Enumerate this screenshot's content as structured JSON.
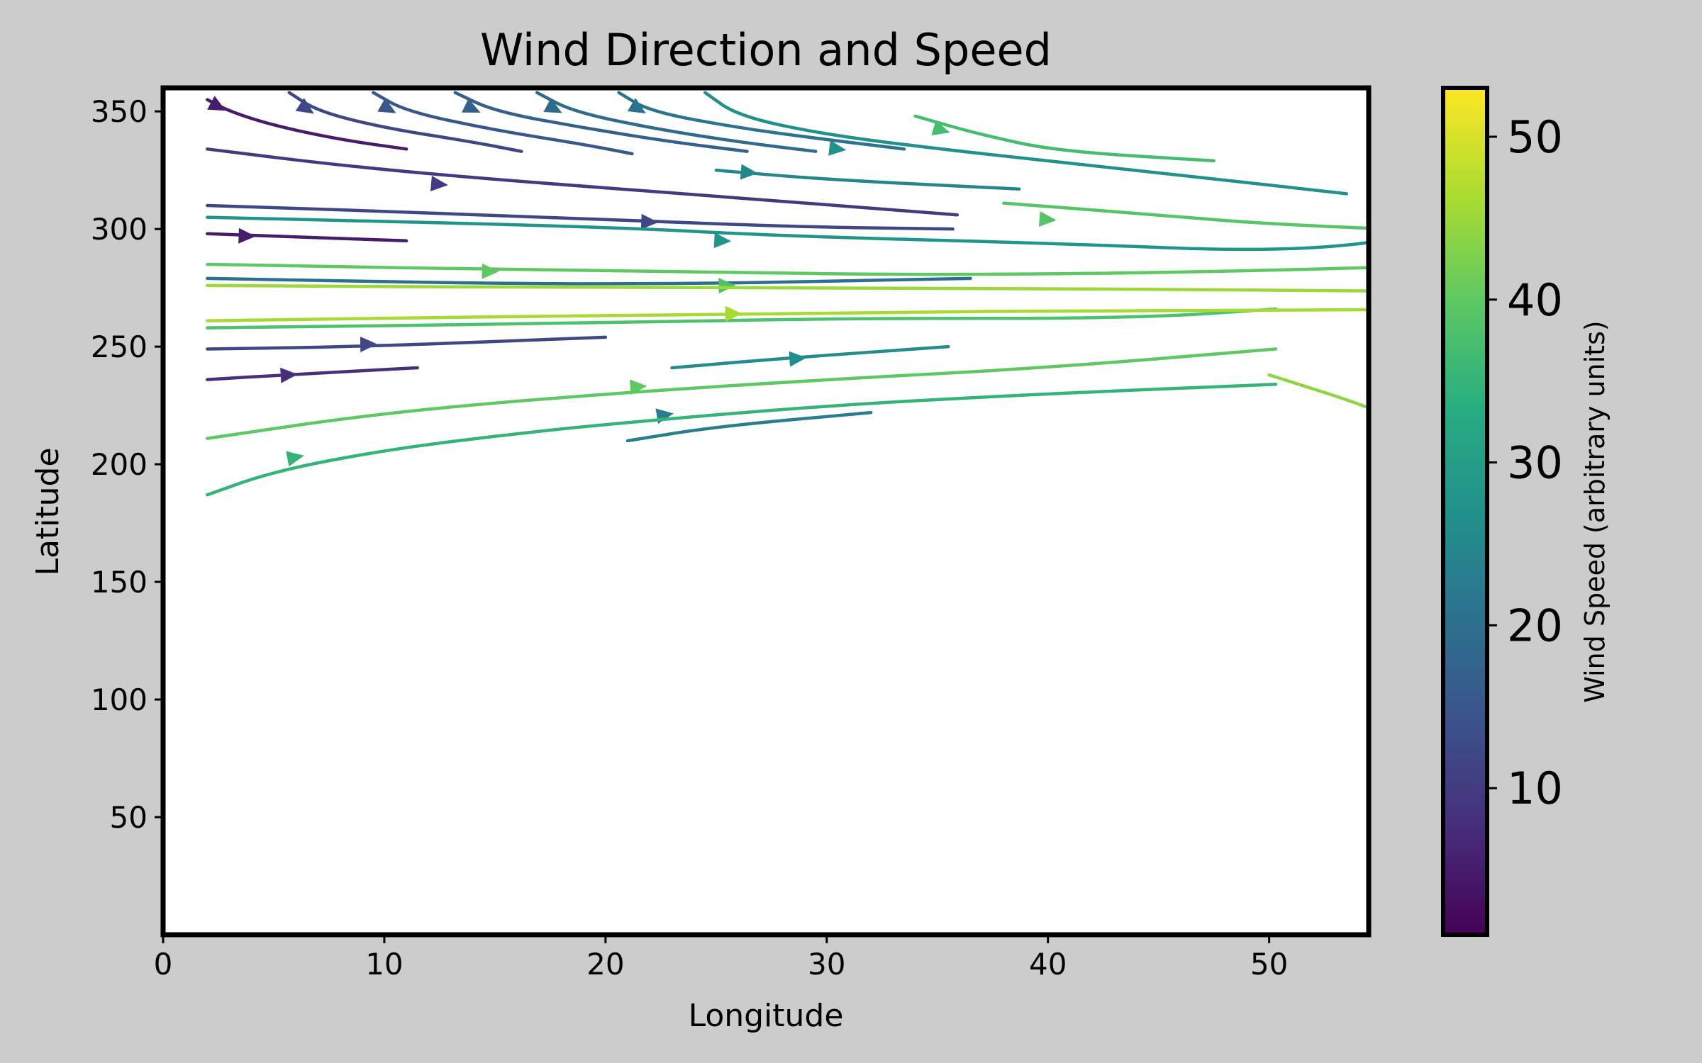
{
  "chart_data": {
    "type": "streamplot",
    "title": "Wind Direction and Speed",
    "xlabel": "Longitude",
    "ylabel": "Latitude",
    "xlim": [
      0,
      54.5
    ],
    "ylim": [
      0,
      360
    ],
    "xticks": [
      0,
      10,
      20,
      30,
      40,
      50
    ],
    "yticks": [
      50,
      100,
      150,
      200,
      250,
      300,
      350
    ],
    "grid": false,
    "colorbar": {
      "label": "Wind Speed (arbitrary units)",
      "range": [
        1,
        53
      ],
      "ticks": [
        10,
        20,
        30,
        40,
        50
      ],
      "colormap": "viridis"
    },
    "streamlines": [
      {
        "pts": [
          [
            2,
            355
          ],
          [
            3,
            350
          ],
          [
            5,
            344
          ],
          [
            8,
            338
          ],
          [
            11,
            334
          ]
        ],
        "speed": 5,
        "arrow": [
          2.5,
          352
        ],
        "dir": 1
      },
      {
        "pts": [
          [
            5.7,
            358
          ],
          [
            7,
            350
          ],
          [
            10,
            343
          ],
          [
            14,
            337
          ],
          [
            16.2,
            333
          ]
        ],
        "speed": 12,
        "arrow": [
          6.5,
          351
        ],
        "dir": 1
      },
      {
        "pts": [
          [
            9.5,
            358
          ],
          [
            11,
            350
          ],
          [
            15,
            342
          ],
          [
            19,
            336
          ],
          [
            21.2,
            332
          ]
        ],
        "speed": 15,
        "arrow": [
          10.2,
          351
        ],
        "dir": 1
      },
      {
        "pts": [
          [
            13.2,
            358
          ],
          [
            15,
            350
          ],
          [
            19,
            343
          ],
          [
            23,
            337
          ],
          [
            26.4,
            333
          ]
        ],
        "speed": 17,
        "arrow": [
          14,
          351
        ],
        "dir": 1
      },
      {
        "pts": [
          [
            16.9,
            358
          ],
          [
            18.5,
            350
          ],
          [
            22,
            343
          ],
          [
            26,
            337
          ],
          [
            29.5,
            333
          ]
        ],
        "speed": 19,
        "arrow": [
          17.7,
          351
        ],
        "dir": 1
      },
      {
        "pts": [
          [
            20.6,
            358
          ],
          [
            22,
            350
          ],
          [
            26,
            343
          ],
          [
            30,
            338
          ],
          [
            33.5,
            334
          ]
        ],
        "speed": 21,
        "arrow": [
          21.5,
          351
        ],
        "dir": 1
      },
      {
        "pts": [
          [
            24.5,
            358
          ],
          [
            26,
            348
          ],
          [
            30,
            340
          ],
          [
            36,
            333
          ],
          [
            43,
            326
          ],
          [
            53.5,
            315
          ]
        ],
        "speed": 27,
        "arrow": [
          30.5,
          334
        ],
        "dir": 1
      },
      {
        "pts": [
          [
            34,
            348
          ],
          [
            37,
            340
          ],
          [
            40.5,
            333
          ],
          [
            47.5,
            329
          ]
        ],
        "speed": 37,
        "arrow": [
          35.2,
          342
        ],
        "dir": 1
      },
      {
        "pts": [
          [
            25,
            325
          ],
          [
            30,
            321
          ],
          [
            38.7,
            317
          ]
        ],
        "speed": 25,
        "arrow": [
          26.5,
          324
        ],
        "dir": 1
      },
      {
        "pts": [
          [
            2,
            334
          ],
          [
            8,
            327
          ],
          [
            15,
            321
          ],
          [
            25,
            314
          ],
          [
            35.9,
            306
          ]
        ],
        "speed": 10,
        "arrow": [
          12.5,
          319
        ],
        "dir": 1
      },
      {
        "pts": [
          [
            38,
            311
          ],
          [
            45,
            306
          ],
          [
            50,
            302
          ],
          [
            60.8,
            298
          ]
        ],
        "speed": 39,
        "arrow": [
          40,
          304
        ],
        "dir": 1
      },
      {
        "pts": [
          [
            2,
            310
          ],
          [
            15,
            306
          ],
          [
            28,
            301
          ],
          [
            35.7,
            300
          ]
        ],
        "speed": 12,
        "arrow": [
          22,
          303
        ],
        "dir": 1
      },
      {
        "pts": [
          [
            2,
            305
          ],
          [
            20,
            301
          ],
          [
            28,
            297
          ],
          [
            40,
            294
          ],
          [
            51,
            290
          ],
          [
            57.5,
            298
          ]
        ],
        "speed": 28,
        "arrow": [
          25.3,
          295
        ],
        "dir": 1
      },
      {
        "pts": [
          [
            2,
            298
          ],
          [
            5,
            297
          ],
          [
            11,
            295
          ]
        ],
        "speed": 5,
        "arrow": [
          3.8,
          297
        ],
        "dir": 1
      },
      {
        "pts": [
          [
            2,
            285
          ],
          [
            20,
            282
          ],
          [
            40,
            280
          ],
          [
            64.3,
            286
          ]
        ],
        "speed": 40,
        "arrow": [
          14.8,
          282
        ],
        "dir": 1
      },
      {
        "pts": [
          [
            2,
            279
          ],
          [
            20,
            276
          ],
          [
            36.5,
            279
          ]
        ],
        "speed": 20,
        "arrow": [
          14.8,
          282
        ],
        "dir": 0
      },
      {
        "pts": [
          [
            2,
            258
          ],
          [
            20,
            260
          ],
          [
            30,
            262
          ],
          [
            44,
            262
          ],
          [
            50.3,
            266
          ]
        ],
        "speed": 38,
        "arrow": [
          25.5,
          276
        ],
        "dir": 1
      },
      {
        "pts": [
          [
            2,
            276
          ],
          [
            20,
            275
          ],
          [
            35,
            275
          ],
          [
            50,
            274
          ],
          [
            64.3,
            273
          ]
        ],
        "speed": 45,
        "arrow": [
          25.5,
          276
        ],
        "dir": 0
      },
      {
        "pts": [
          [
            2,
            261
          ],
          [
            25,
            264
          ],
          [
            50.3,
            266
          ],
          [
            73.5,
            266
          ]
        ],
        "speed": 46,
        "arrow": [
          25.8,
          264
        ],
        "dir": 1
      },
      {
        "pts": [
          [
            2,
            249
          ],
          [
            9,
            250
          ],
          [
            20,
            254
          ]
        ],
        "speed": 12,
        "arrow": [
          9.3,
          251
        ],
        "dir": 1
      },
      {
        "pts": [
          [
            2,
            236
          ],
          [
            5.5,
            238
          ],
          [
            11.5,
            241
          ]
        ],
        "speed": 8,
        "arrow": [
          5.7,
          238
        ],
        "dir": 1
      },
      {
        "pts": [
          [
            23,
            241
          ],
          [
            28,
            245
          ],
          [
            35.5,
            250
          ]
        ],
        "speed": 26,
        "arrow": [
          28.7,
          245
        ],
        "dir": 1
      },
      {
        "pts": [
          [
            2,
            211
          ],
          [
            10,
            222
          ],
          [
            20,
            230
          ],
          [
            30,
            236
          ],
          [
            40,
            241
          ],
          [
            50.3,
            249
          ]
        ],
        "speed": 40,
        "arrow": [
          21.5,
          233
        ],
        "dir": 1
      },
      {
        "pts": [
          [
            21,
            210
          ],
          [
            25,
            216
          ],
          [
            32,
            222
          ]
        ],
        "speed": 23,
        "arrow": [
          22.7,
          221
        ],
        "dir": 1
      },
      {
        "pts": [
          [
            2,
            187
          ],
          [
            5,
            197
          ],
          [
            10,
            206
          ],
          [
            15,
            212
          ],
          [
            20,
            217
          ],
          [
            30,
            225
          ],
          [
            40,
            230
          ],
          [
            50.3,
            234
          ]
        ],
        "speed": 35,
        "arrow": [
          6,
          203
        ],
        "dir": 1
      },
      {
        "pts": [
          [
            50,
            238
          ],
          [
            55,
            223
          ],
          [
            57,
            212
          ]
        ],
        "speed": 44,
        "arrow": [
          0,
          0
        ],
        "dir": 0
      }
    ]
  }
}
